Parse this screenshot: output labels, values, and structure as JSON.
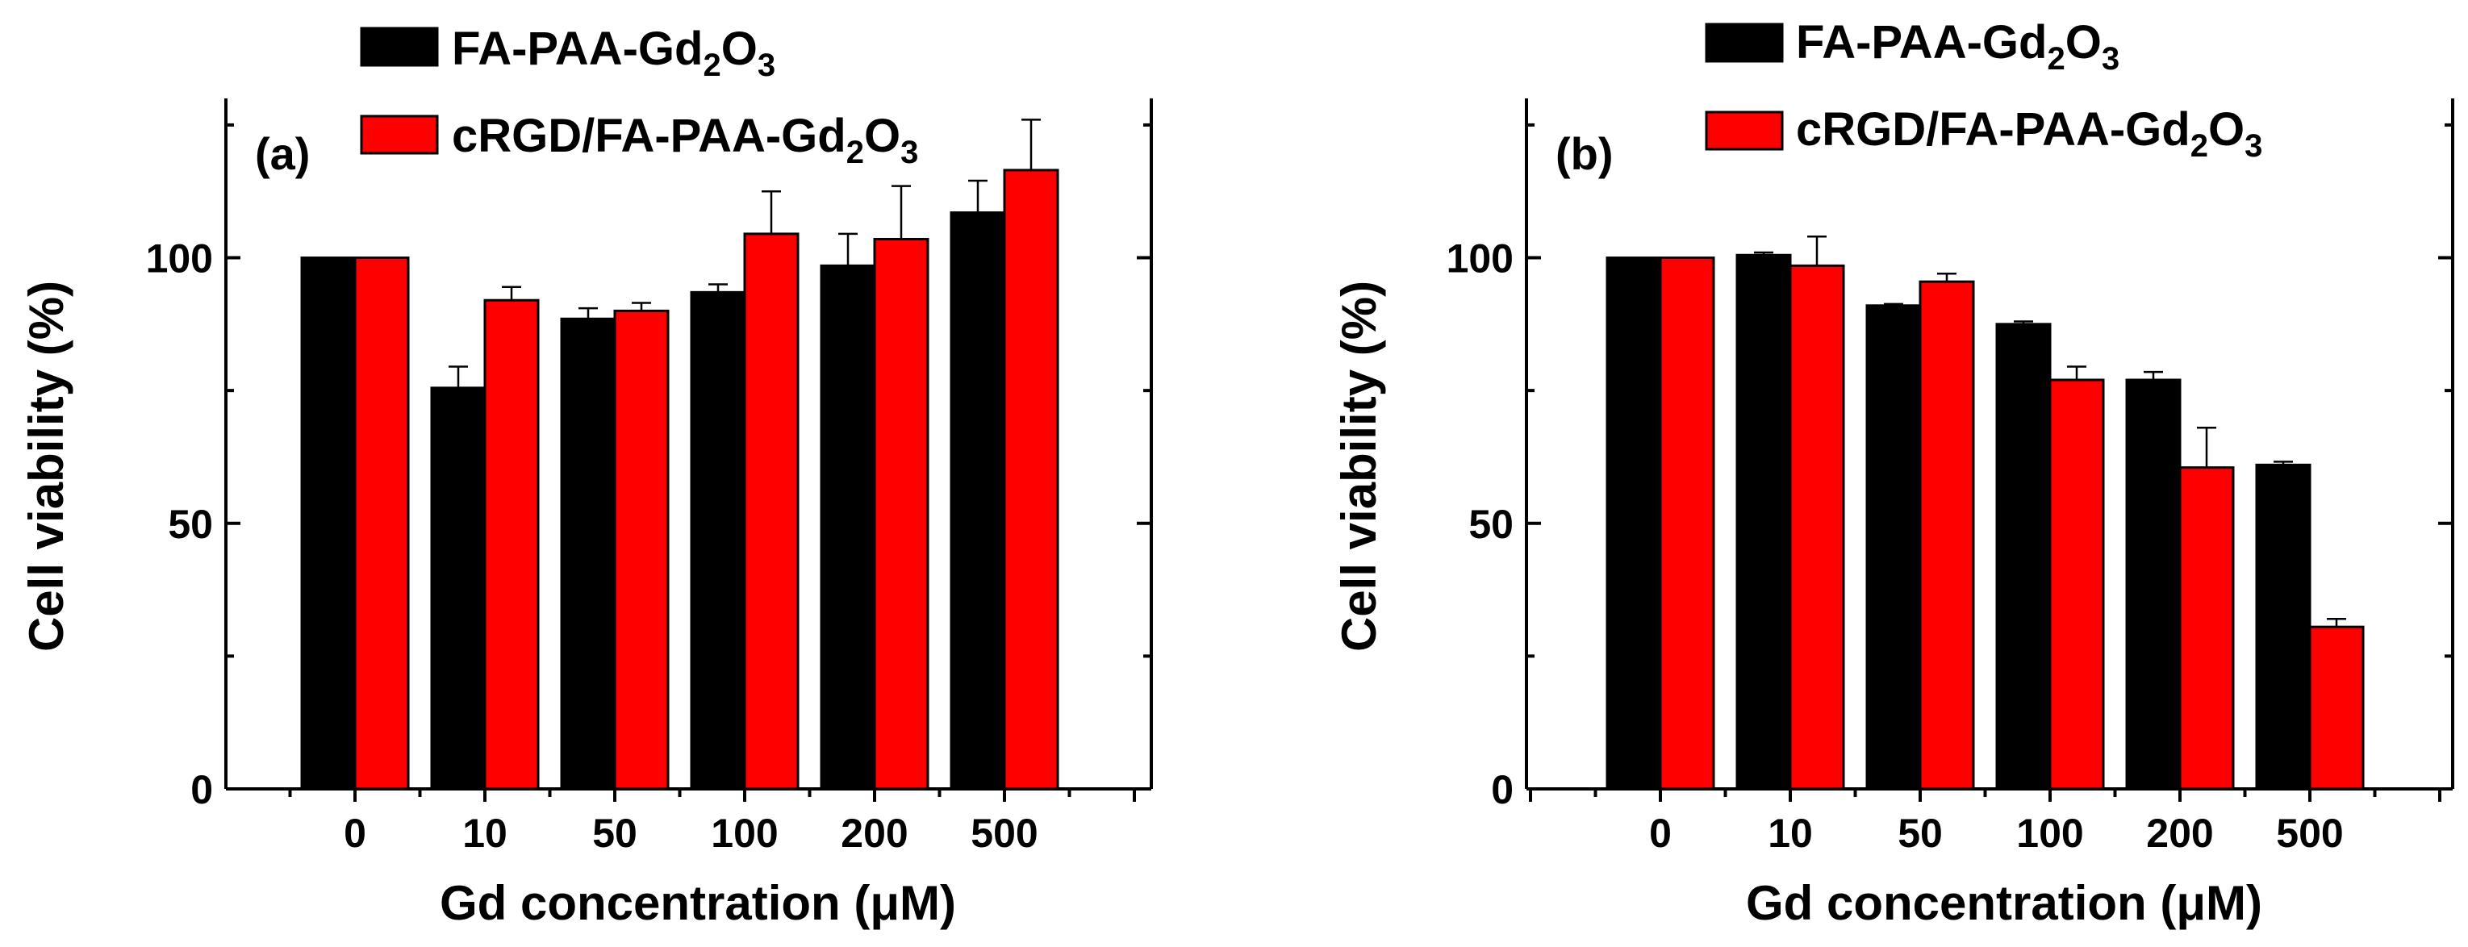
{
  "chart_data": [
    {
      "type": "bar",
      "panel_label": "(a)",
      "xlabel": "Gd concentration (μM)",
      "ylabel": "Cell viability (%)",
      "categories": [
        "0",
        "10",
        "50",
        "100",
        "200",
        "500"
      ],
      "ylim": [
        0,
        130
      ],
      "yticks": [
        0,
        50,
        100
      ],
      "legend_position": "top-left, above plot",
      "series": [
        {
          "name": "FA-PAA-Gd2O3",
          "name_base": "FA-PAA-Gd",
          "sub1": "2",
          "mid": "O",
          "sub2": "3",
          "color": "#000000",
          "values": [
            100,
            75.5,
            88.5,
            93.5,
            98.5,
            108.5
          ],
          "errors": [
            0,
            4,
            2,
            1.5,
            6,
            6
          ]
        },
        {
          "name": "cRGD/FA-PAA-Gd2O3",
          "name_base": "cRGD/FA-PAA-Gd",
          "sub1": "2",
          "mid": "O",
          "sub2": "3",
          "color": "#ff0000",
          "values": [
            100,
            92,
            90,
            104.5,
            103.5,
            116.5
          ],
          "errors": [
            0,
            2.5,
            1.5,
            8,
            10,
            9.5
          ]
        }
      ]
    },
    {
      "type": "bar",
      "panel_label": "(b)",
      "xlabel": "Gd concentration (μM)",
      "ylabel": "Cell viability (%)",
      "categories": [
        "0",
        "10",
        "50",
        "100",
        "200",
        "500"
      ],
      "ylim": [
        0,
        130
      ],
      "yticks": [
        0,
        50,
        100
      ],
      "legend_position": "top-left, above plot",
      "series": [
        {
          "name": "FA-PAA-Gd2O3",
          "name_base": "FA-PAA-Gd",
          "sub1": "2",
          "mid": "O",
          "sub2": "3",
          "color": "#000000",
          "values": [
            100,
            100.5,
            91,
            87.5,
            77,
            61
          ],
          "errors": [
            0,
            0.5,
            0.3,
            0.5,
            1.5,
            0.6
          ]
        },
        {
          "name": "cRGD/FA-PAA-Gd2O3",
          "name_base": "cRGD/FA-PAA-Gd",
          "sub1": "2",
          "mid": "O",
          "sub2": "3",
          "color": "#ff0000",
          "values": [
            100,
            98.5,
            95.5,
            77,
            60.5,
            30.5
          ],
          "errors": [
            0,
            5.5,
            1.5,
            2.5,
            7.5,
            1.5
          ]
        }
      ]
    }
  ]
}
